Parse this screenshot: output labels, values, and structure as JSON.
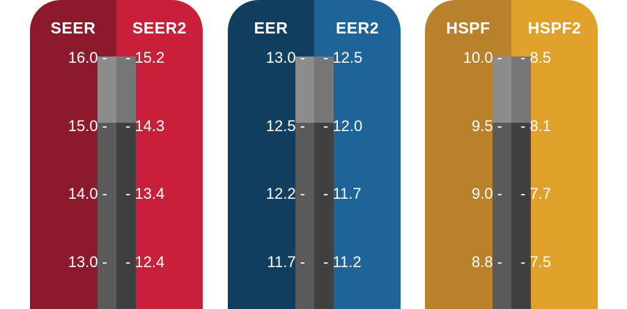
{
  "panels": [
    {
      "left_label": "SEER",
      "right_label": "SEER2",
      "left_color": "#8b1a2c",
      "right_color": "#c8203a",
      "left_ticks": [
        "16.0 -",
        "15.0 -",
        "14.0 -",
        "13.0 -"
      ],
      "right_ticks": [
        "- 15.2",
        "- 14.3",
        "- 13.4",
        "- 12.4"
      ]
    },
    {
      "left_label": "EER",
      "right_label": "EER2",
      "left_color": "#123f60",
      "right_color": "#1f6499",
      "left_ticks": [
        "13.0 -",
        "12.5 -",
        "12.2 -",
        "11.7 -"
      ],
      "right_ticks": [
        "- 12.5",
        "- 12.0",
        "- 11.7",
        "- 11.2"
      ]
    },
    {
      "left_label": "HSPF",
      "right_label": "HSPF2",
      "left_color": "#b8812c",
      "right_color": "#e0a12a",
      "left_ticks": [
        "10.0 -",
        "9.5 -",
        "9.0 -",
        "8.8 -"
      ],
      "right_ticks": [
        "- 8.5",
        "- 8.1",
        "- 7.7",
        "- 7.5"
      ]
    }
  ]
}
